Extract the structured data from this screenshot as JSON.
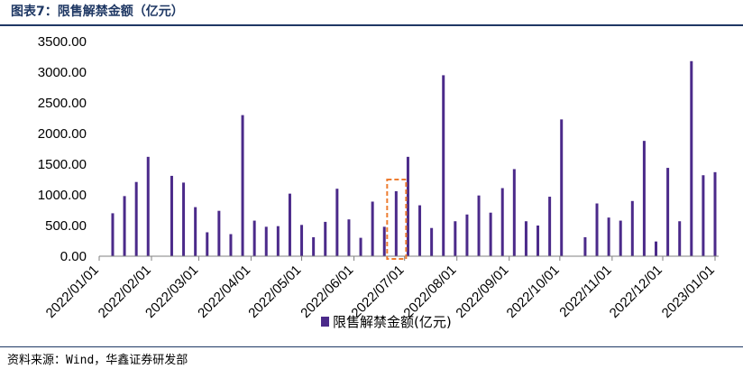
{
  "figure": {
    "title": "图表7：限售解禁金额（亿元）",
    "source": "资料来源：Wind，华鑫证券研发部"
  },
  "chart_data": {
    "type": "bar",
    "title": "",
    "xlabel": "",
    "ylabel": "",
    "ylim": [
      0,
      3500
    ],
    "yticks": [
      "0.00",
      "500.00",
      "1000.00",
      "1500.00",
      "2000.00",
      "2500.00",
      "3000.00",
      "3500.00"
    ],
    "xticks": [
      "2022/01/01",
      "2022/02/01",
      "2022/03/01",
      "2022/04/01",
      "2022/05/01",
      "2022/06/01",
      "2022/07/01",
      "2022/08/01",
      "2022/09/01",
      "2022/10/01",
      "2022/11/01",
      "2022/12/01",
      "2023/01/01"
    ],
    "legend": "bottom-center",
    "grid": false,
    "series": [
      {
        "name": "限售解禁金额(亿元)",
        "color": "#4b2a8a",
        "points": [
          [
            "2022/01/09",
            700
          ],
          [
            "2022/01/16",
            980
          ],
          [
            "2022/01/23",
            1210
          ],
          [
            "2022/01/30",
            1620
          ],
          [
            "2022/02/13",
            1310
          ],
          [
            "2022/02/20",
            1200
          ],
          [
            "2022/02/27",
            800
          ],
          [
            "2022/03/06",
            390
          ],
          [
            "2022/03/13",
            740
          ],
          [
            "2022/03/20",
            360
          ],
          [
            "2022/03/27",
            2300
          ],
          [
            "2022/04/03",
            580
          ],
          [
            "2022/04/10",
            480
          ],
          [
            "2022/04/17",
            490
          ],
          [
            "2022/04/24",
            1020
          ],
          [
            "2022/05/01",
            510
          ],
          [
            "2022/05/08",
            310
          ],
          [
            "2022/05/15",
            560
          ],
          [
            "2022/05/22",
            1100
          ],
          [
            "2022/05/29",
            600
          ],
          [
            "2022/06/05",
            300
          ],
          [
            "2022/06/12",
            890
          ],
          [
            "2022/06/19",
            480
          ],
          [
            "2022/06/26",
            1060
          ],
          [
            "2022/07/03",
            1620
          ],
          [
            "2022/07/10",
            830
          ],
          [
            "2022/07/17",
            460
          ],
          [
            "2022/07/24",
            2950
          ],
          [
            "2022/07/31",
            570
          ],
          [
            "2022/08/07",
            680
          ],
          [
            "2022/08/14",
            990
          ],
          [
            "2022/08/21",
            710
          ],
          [
            "2022/08/28",
            1110
          ],
          [
            "2022/09/04",
            1420
          ],
          [
            "2022/09/11",
            570
          ],
          [
            "2022/09/18",
            500
          ],
          [
            "2022/09/25",
            970
          ],
          [
            "2022/10/02",
            2230
          ],
          [
            "2022/10/16",
            310
          ],
          [
            "2022/10/23",
            860
          ],
          [
            "2022/10/30",
            630
          ],
          [
            "2022/11/06",
            580
          ],
          [
            "2022/11/13",
            900
          ],
          [
            "2022/11/20",
            1880
          ],
          [
            "2022/11/27",
            240
          ],
          [
            "2022/12/04",
            1440
          ],
          [
            "2022/12/11",
            570
          ],
          [
            "2022/12/18",
            3180
          ],
          [
            "2022/12/25",
            1320
          ],
          [
            "2023/01/01",
            1370
          ]
        ]
      }
    ],
    "annotation": {
      "type": "dashed-box",
      "color": "#ed7d31",
      "date": "2022/06/26"
    }
  }
}
